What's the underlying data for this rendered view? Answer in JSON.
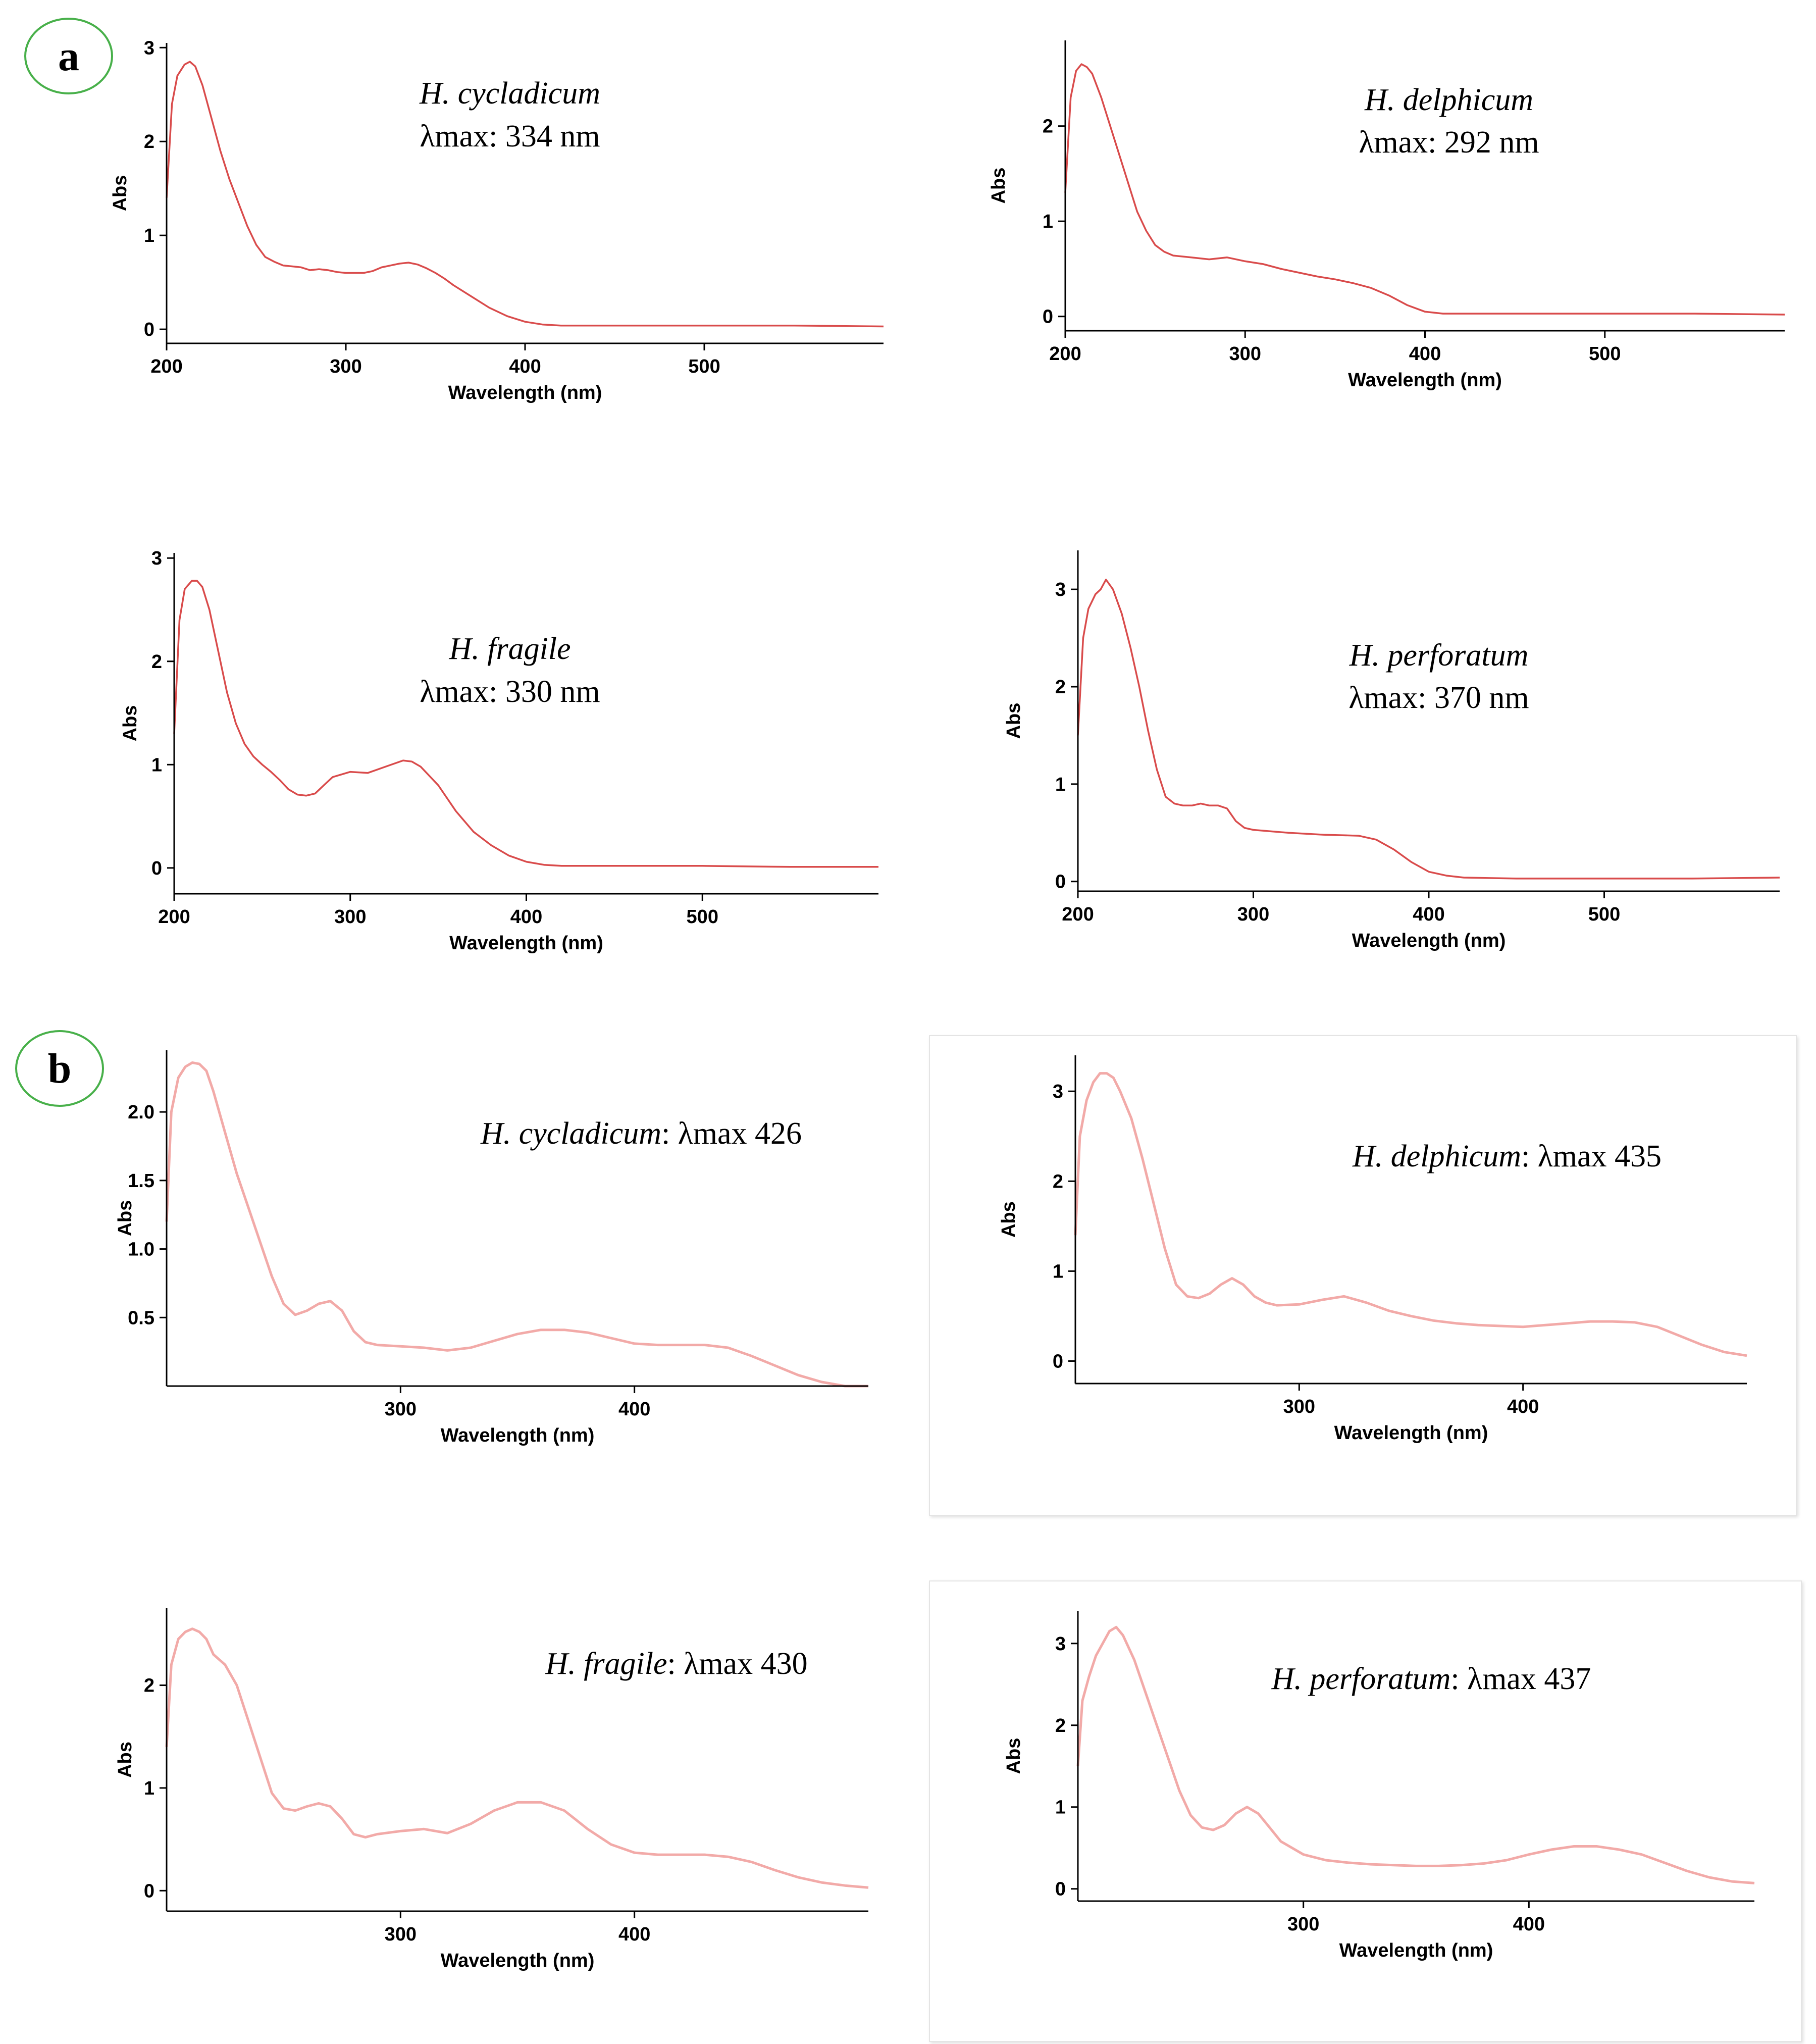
{
  "panels": [
    {
      "label": "a"
    },
    {
      "label": "b"
    }
  ],
  "chart_data": [
    {
      "id": "a1",
      "panel": "a",
      "type": "line",
      "color": "#d94b4b",
      "xlabel": "Wavelength (nm)",
      "ylabel": "Abs",
      "xlim": [
        200,
        600
      ],
      "ylim": [
        -0.15,
        3.05
      ],
      "xticks": [
        200,
        300,
        400,
        500
      ],
      "yticks": [
        0,
        1,
        2,
        3
      ],
      "annotation": {
        "species": "H. cycladicum",
        "lambda": "λmax: 334 nm"
      },
      "series": [
        {
          "x": [
            200,
            203,
            206,
            210,
            213,
            216,
            220,
            225,
            230,
            235,
            240,
            245,
            250,
            255,
            260,
            265,
            270,
            275,
            280,
            285,
            290,
            295,
            300,
            305,
            310,
            315,
            320,
            325,
            330,
            335,
            340,
            345,
            350,
            355,
            360,
            370,
            380,
            390,
            400,
            410,
            420,
            450,
            500,
            550,
            600
          ],
          "y": [
            1.4,
            2.4,
            2.7,
            2.82,
            2.85,
            2.8,
            2.6,
            2.25,
            1.9,
            1.6,
            1.35,
            1.1,
            0.9,
            0.77,
            0.72,
            0.68,
            0.67,
            0.66,
            0.63,
            0.64,
            0.63,
            0.61,
            0.6,
            0.6,
            0.6,
            0.62,
            0.66,
            0.68,
            0.7,
            0.71,
            0.69,
            0.65,
            0.6,
            0.54,
            0.47,
            0.35,
            0.23,
            0.14,
            0.08,
            0.05,
            0.04,
            0.04,
            0.04,
            0.04,
            0.03
          ]
        }
      ]
    },
    {
      "id": "a2",
      "panel": "a",
      "type": "line",
      "color": "#d94b4b",
      "xlabel": "Wavelength (nm)",
      "ylabel": "Abs",
      "xlim": [
        200,
        600
      ],
      "ylim": [
        -0.15,
        2.9
      ],
      "xticks": [
        200,
        300,
        400,
        500
      ],
      "yticks": [
        0,
        1,
        2
      ],
      "annotation": {
        "species": "H. delphicum",
        "lambda": "λmax: 292 nm"
      },
      "series": [
        {
          "x": [
            200,
            203,
            206,
            209,
            212,
            215,
            220,
            225,
            230,
            235,
            240,
            245,
            250,
            255,
            260,
            270,
            280,
            290,
            300,
            310,
            320,
            330,
            340,
            350,
            360,
            370,
            380,
            390,
            400,
            410,
            420,
            450,
            500,
            550,
            600
          ],
          "y": [
            1.3,
            2.3,
            2.58,
            2.65,
            2.62,
            2.55,
            2.3,
            2.0,
            1.7,
            1.4,
            1.1,
            0.9,
            0.75,
            0.68,
            0.64,
            0.62,
            0.6,
            0.62,
            0.58,
            0.55,
            0.5,
            0.46,
            0.42,
            0.39,
            0.35,
            0.3,
            0.22,
            0.12,
            0.05,
            0.03,
            0.03,
            0.03,
            0.03,
            0.03,
            0.02
          ]
        }
      ]
    },
    {
      "id": "a3",
      "panel": "a",
      "type": "line",
      "color": "#d94b4b",
      "xlabel": "Wavelength (nm)",
      "ylabel": "Abs",
      "xlim": [
        200,
        600
      ],
      "ylim": [
        -0.25,
        3.05
      ],
      "xticks": [
        200,
        300,
        400,
        500
      ],
      "yticks": [
        0,
        1,
        2,
        3
      ],
      "annotation": {
        "species": "H. fragile",
        "lambda": "λmax: 330 nm"
      },
      "series": [
        {
          "x": [
            200,
            203,
            206,
            210,
            213,
            216,
            220,
            225,
            230,
            235,
            240,
            245,
            250,
            255,
            260,
            265,
            270,
            275,
            280,
            285,
            290,
            300,
            310,
            320,
            330,
            335,
            340,
            350,
            360,
            370,
            380,
            390,
            400,
            410,
            420,
            450,
            500,
            550,
            600
          ],
          "y": [
            1.3,
            2.4,
            2.7,
            2.78,
            2.78,
            2.72,
            2.5,
            2.1,
            1.7,
            1.4,
            1.2,
            1.08,
            1.0,
            0.93,
            0.85,
            0.76,
            0.71,
            0.7,
            0.72,
            0.8,
            0.88,
            0.93,
            0.92,
            0.98,
            1.04,
            1.03,
            0.98,
            0.8,
            0.55,
            0.35,
            0.22,
            0.12,
            0.06,
            0.03,
            0.02,
            0.02,
            0.02,
            0.01,
            0.01
          ]
        }
      ]
    },
    {
      "id": "a4",
      "panel": "a",
      "type": "line",
      "color": "#d94b4b",
      "xlabel": "Wavelength (nm)",
      "ylabel": "Abs",
      "xlim": [
        200,
        600
      ],
      "ylim": [
        -0.1,
        3.4
      ],
      "xticks": [
        200,
        300,
        400,
        500
      ],
      "yticks": [
        0,
        1,
        2,
        3
      ],
      "annotation": {
        "species": "H. perforatum",
        "lambda": "λmax: 370 nm"
      },
      "series": [
        {
          "x": [
            200,
            203,
            206,
            210,
            213,
            216,
            220,
            225,
            230,
            235,
            240,
            245,
            250,
            255,
            260,
            265,
            270,
            275,
            280,
            285,
            290,
            295,
            300,
            320,
            340,
            360,
            370,
            380,
            390,
            400,
            410,
            420,
            450,
            500,
            550,
            600
          ],
          "y": [
            1.5,
            2.5,
            2.8,
            2.95,
            3.0,
            3.1,
            3.0,
            2.75,
            2.4,
            2.0,
            1.55,
            1.15,
            0.87,
            0.8,
            0.78,
            0.78,
            0.8,
            0.78,
            0.78,
            0.75,
            0.62,
            0.55,
            0.53,
            0.5,
            0.48,
            0.47,
            0.43,
            0.33,
            0.2,
            0.1,
            0.06,
            0.04,
            0.03,
            0.03,
            0.03,
            0.04
          ]
        }
      ]
    },
    {
      "id": "b1",
      "panel": "b",
      "type": "line",
      "color": "#f2aaa8",
      "xlabel": "Wavelength (nm)",
      "ylabel": "Abs",
      "xlim": [
        200,
        500
      ],
      "ylim": [
        0.0,
        2.45
      ],
      "xticks": [
        300,
        400
      ],
      "yticks": [
        0.5,
        1.0,
        1.5,
        2.0
      ],
      "annotation": {
        "species": "H. cycladicum",
        "lambda": ": λmax 426"
      },
      "series": [
        {
          "x": [
            200,
            202,
            205,
            208,
            211,
            214,
            217,
            220,
            225,
            230,
            235,
            240,
            245,
            250,
            255,
            260,
            265,
            270,
            275,
            280,
            285,
            290,
            300,
            310,
            320,
            330,
            340,
            350,
            360,
            370,
            380,
            390,
            400,
            410,
            420,
            430,
            440,
            450,
            460,
            470,
            480,
            490,
            500
          ],
          "y": [
            1.2,
            2.0,
            2.25,
            2.33,
            2.36,
            2.35,
            2.3,
            2.15,
            1.85,
            1.55,
            1.3,
            1.05,
            0.8,
            0.6,
            0.52,
            0.55,
            0.6,
            0.62,
            0.55,
            0.4,
            0.32,
            0.3,
            0.29,
            0.28,
            0.26,
            0.28,
            0.33,
            0.38,
            0.41,
            0.41,
            0.39,
            0.35,
            0.31,
            0.3,
            0.3,
            0.3,
            0.28,
            0.22,
            0.15,
            0.08,
            0.03,
            0.0,
            0.0
          ]
        }
      ]
    },
    {
      "id": "b2",
      "panel": "b",
      "type": "line",
      "color": "#f2aaa8",
      "xlabel": "Wavelength (nm)",
      "ylabel": "Abs",
      "xlim": [
        200,
        500
      ],
      "ylim": [
        -0.25,
        3.4
      ],
      "xticks": [
        300,
        400
      ],
      "yticks": [
        0,
        1,
        2,
        3
      ],
      "annotation": {
        "species": "H. delphicum",
        "lambda": ": λmax 435"
      },
      "series": [
        {
          "x": [
            200,
            202,
            205,
            208,
            211,
            214,
            217,
            220,
            225,
            230,
            235,
            240,
            245,
            250,
            255,
            260,
            265,
            270,
            275,
            280,
            285,
            290,
            300,
            310,
            320,
            330,
            340,
            350,
            360,
            370,
            380,
            390,
            400,
            410,
            420,
            430,
            440,
            450,
            460,
            470,
            480,
            490,
            500
          ],
          "y": [
            1.4,
            2.5,
            2.9,
            3.1,
            3.2,
            3.2,
            3.15,
            3.0,
            2.7,
            2.25,
            1.75,
            1.25,
            0.85,
            0.72,
            0.7,
            0.75,
            0.85,
            0.92,
            0.85,
            0.72,
            0.65,
            0.62,
            0.63,
            0.68,
            0.72,
            0.65,
            0.56,
            0.5,
            0.45,
            0.42,
            0.4,
            0.39,
            0.38,
            0.4,
            0.42,
            0.44,
            0.44,
            0.43,
            0.38,
            0.28,
            0.18,
            0.1,
            0.06
          ]
        }
      ]
    },
    {
      "id": "b3",
      "panel": "b",
      "type": "line",
      "color": "#f2aaa8",
      "xlabel": "Wavelength (nm)",
      "ylabel": "Abs",
      "xlim": [
        200,
        500
      ],
      "ylim": [
        -0.2,
        2.75
      ],
      "xticks": [
        300,
        400
      ],
      "yticks": [
        0,
        1,
        2
      ],
      "annotation": {
        "species": "H. fragile",
        "lambda": ": λmax 430"
      },
      "series": [
        {
          "x": [
            200,
            202,
            205,
            208,
            211,
            214,
            217,
            220,
            225,
            230,
            235,
            240,
            245,
            250,
            255,
            260,
            265,
            270,
            275,
            280,
            285,
            290,
            300,
            310,
            320,
            330,
            340,
            350,
            360,
            370,
            380,
            390,
            400,
            410,
            420,
            430,
            440,
            450,
            460,
            470,
            480,
            490,
            500
          ],
          "y": [
            1.4,
            2.2,
            2.45,
            2.52,
            2.55,
            2.52,
            2.45,
            2.3,
            2.2,
            2.0,
            1.65,
            1.3,
            0.95,
            0.8,
            0.78,
            0.82,
            0.85,
            0.82,
            0.7,
            0.55,
            0.52,
            0.55,
            0.58,
            0.6,
            0.56,
            0.65,
            0.78,
            0.86,
            0.86,
            0.78,
            0.6,
            0.45,
            0.37,
            0.35,
            0.35,
            0.35,
            0.33,
            0.28,
            0.2,
            0.13,
            0.08,
            0.05,
            0.03
          ]
        }
      ]
    },
    {
      "id": "b4",
      "panel": "b",
      "type": "line",
      "color": "#f2aaa8",
      "xlabel": "Wavelength (nm)",
      "ylabel": "Abs",
      "xlim": [
        200,
        500
      ],
      "ylim": [
        -0.15,
        3.4
      ],
      "xticks": [
        300,
        400
      ],
      "yticks": [
        0,
        1,
        2,
        3
      ],
      "annotation": {
        "species": "H. perforatum",
        "lambda": ": λmax 437"
      },
      "series": [
        {
          "x": [
            200,
            202,
            205,
            208,
            211,
            214,
            217,
            220,
            225,
            230,
            235,
            240,
            245,
            250,
            255,
            260,
            265,
            270,
            275,
            280,
            285,
            290,
            300,
            310,
            320,
            330,
            340,
            350,
            360,
            370,
            380,
            390,
            400,
            410,
            420,
            430,
            440,
            450,
            460,
            470,
            480,
            490,
            500
          ],
          "y": [
            1.5,
            2.3,
            2.6,
            2.85,
            3.0,
            3.15,
            3.2,
            3.1,
            2.8,
            2.4,
            2.0,
            1.6,
            1.2,
            0.9,
            0.75,
            0.72,
            0.78,
            0.92,
            1.0,
            0.92,
            0.75,
            0.58,
            0.42,
            0.35,
            0.32,
            0.3,
            0.29,
            0.28,
            0.28,
            0.29,
            0.31,
            0.35,
            0.42,
            0.48,
            0.52,
            0.52,
            0.48,
            0.42,
            0.32,
            0.22,
            0.14,
            0.09,
            0.07
          ]
        }
      ]
    }
  ]
}
